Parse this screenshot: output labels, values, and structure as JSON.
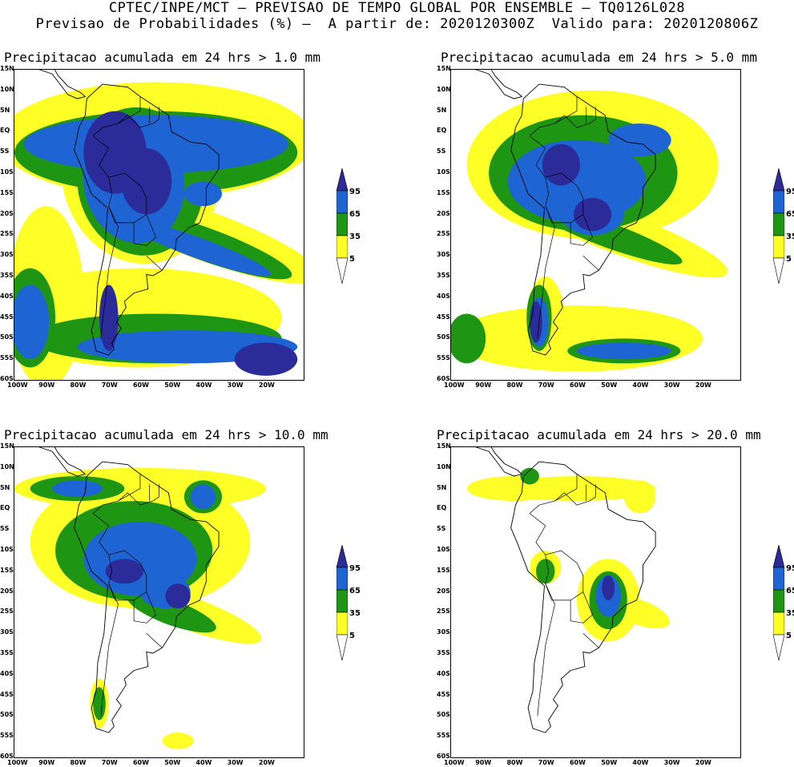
{
  "header": {
    "line1": "CPTEC/INPE/MCT — PREVISAO DE TEMPO GLOBAL POR ENSEMBLE — TQ0126L028",
    "line2": "Previsao de Probabilidades (%) —  A partir de: 2020120300Z  Valido para: 2020120806Z"
  },
  "panels": [
    {
      "title": "Precipitacao acumulada em 24 hrs > 1.0 mm"
    },
    {
      "title": "Precipitacao acumulada em 24 hrs > 5.0 mm"
    },
    {
      "title": "Precipitacao acumulada em 24 hrs > 10.0 mm"
    },
    {
      "title": "Precipitacao acumulada em 24 hrs > 20.0 mm"
    }
  ],
  "lat_labels": [
    "15N",
    "10N",
    "5N",
    "EQ",
    "5S",
    "10S",
    "15S",
    "20S",
    "25S",
    "30S",
    "35S",
    "40S",
    "45S",
    "50S",
    "55S",
    "60S"
  ],
  "lon_labels": [
    "100W",
    "90W",
    "80W",
    "70W",
    "60W",
    "50W",
    "40W",
    "30W",
    "20W"
  ],
  "colorbar": {
    "labels": [
      "95",
      "65",
      "35",
      "5"
    ],
    "colors": {
      "c95": "#2b2b9a",
      "c65": "#1e64d2",
      "c35": "#1e9614",
      "c5": "#ffff28"
    }
  }
}
